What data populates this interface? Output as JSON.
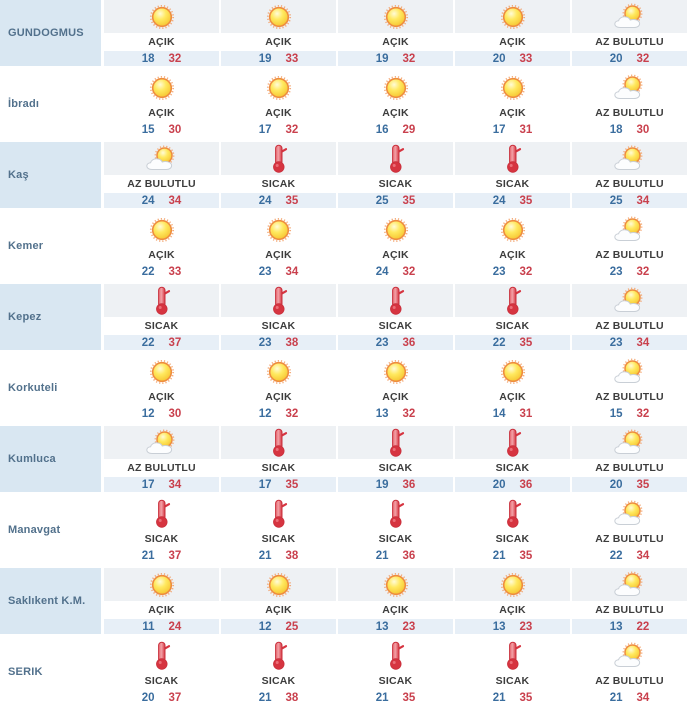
{
  "table": {
    "rows": [
      {
        "city": "GUNDOGMUS",
        "days": [
          {
            "icon": "sun",
            "condition": "AÇIK",
            "min": "18",
            "max": "32"
          },
          {
            "icon": "sun",
            "condition": "AÇIK",
            "min": "19",
            "max": "33"
          },
          {
            "icon": "sun",
            "condition": "AÇIK",
            "min": "19",
            "max": "32"
          },
          {
            "icon": "sun",
            "condition": "AÇIK",
            "min": "20",
            "max": "33"
          },
          {
            "icon": "sun-behind-cloud",
            "condition": "AZ BULUTLU",
            "min": "20",
            "max": "32"
          }
        ]
      },
      {
        "city": "İbradı",
        "days": [
          {
            "icon": "sun",
            "condition": "AÇIK",
            "min": "15",
            "max": "30"
          },
          {
            "icon": "sun",
            "condition": "AÇIK",
            "min": "17",
            "max": "32"
          },
          {
            "icon": "sun",
            "condition": "AÇIK",
            "min": "16",
            "max": "29"
          },
          {
            "icon": "sun",
            "condition": "AÇIK",
            "min": "17",
            "max": "31"
          },
          {
            "icon": "sun-behind-cloud",
            "condition": "AZ BULUTLU",
            "min": "18",
            "max": "30"
          }
        ]
      },
      {
        "city": "Kaş",
        "days": [
          {
            "icon": "sun-behind-cloud",
            "condition": "AZ BULUTLU",
            "min": "24",
            "max": "34"
          },
          {
            "icon": "thermometer",
            "condition": "SICAK",
            "min": "24",
            "max": "35"
          },
          {
            "icon": "thermometer",
            "condition": "SICAK",
            "min": "25",
            "max": "35"
          },
          {
            "icon": "thermometer",
            "condition": "SICAK",
            "min": "24",
            "max": "35"
          },
          {
            "icon": "sun-behind-cloud",
            "condition": "AZ BULUTLU",
            "min": "25",
            "max": "34"
          }
        ]
      },
      {
        "city": "Kemer",
        "days": [
          {
            "icon": "sun",
            "condition": "AÇIK",
            "min": "22",
            "max": "33"
          },
          {
            "icon": "sun",
            "condition": "AÇIK",
            "min": "23",
            "max": "34"
          },
          {
            "icon": "sun",
            "condition": "AÇIK",
            "min": "24",
            "max": "32"
          },
          {
            "icon": "sun",
            "condition": "AÇIK",
            "min": "23",
            "max": "32"
          },
          {
            "icon": "sun-behind-cloud",
            "condition": "AZ BULUTLU",
            "min": "23",
            "max": "32"
          }
        ]
      },
      {
        "city": "Kepez",
        "days": [
          {
            "icon": "thermometer",
            "condition": "SICAK",
            "min": "22",
            "max": "37"
          },
          {
            "icon": "thermometer",
            "condition": "SICAK",
            "min": "23",
            "max": "38"
          },
          {
            "icon": "thermometer",
            "condition": "SICAK",
            "min": "23",
            "max": "36"
          },
          {
            "icon": "thermometer",
            "condition": "SICAK",
            "min": "22",
            "max": "35"
          },
          {
            "icon": "sun-behind-cloud",
            "condition": "AZ BULUTLU",
            "min": "23",
            "max": "34"
          }
        ]
      },
      {
        "city": "Korkuteli",
        "days": [
          {
            "icon": "sun",
            "condition": "AÇIK",
            "min": "12",
            "max": "30"
          },
          {
            "icon": "sun",
            "condition": "AÇIK",
            "min": "12",
            "max": "32"
          },
          {
            "icon": "sun",
            "condition": "AÇIK",
            "min": "13",
            "max": "32"
          },
          {
            "icon": "sun",
            "condition": "AÇIK",
            "min": "14",
            "max": "31"
          },
          {
            "icon": "sun-behind-cloud",
            "condition": "AZ BULUTLU",
            "min": "15",
            "max": "32"
          }
        ]
      },
      {
        "city": "Kumluca",
        "days": [
          {
            "icon": "sun-behind-cloud",
            "condition": "AZ BULUTLU",
            "min": "17",
            "max": "34"
          },
          {
            "icon": "thermometer",
            "condition": "SICAK",
            "min": "17",
            "max": "35"
          },
          {
            "icon": "thermometer",
            "condition": "SICAK",
            "min": "19",
            "max": "36"
          },
          {
            "icon": "thermometer",
            "condition": "SICAK",
            "min": "20",
            "max": "36"
          },
          {
            "icon": "sun-behind-cloud",
            "condition": "AZ BULUTLU",
            "min": "20",
            "max": "35"
          }
        ]
      },
      {
        "city": "Manavgat",
        "days": [
          {
            "icon": "thermometer",
            "condition": "SICAK",
            "min": "21",
            "max": "37"
          },
          {
            "icon": "thermometer",
            "condition": "SICAK",
            "min": "21",
            "max": "38"
          },
          {
            "icon": "thermometer",
            "condition": "SICAK",
            "min": "21",
            "max": "36"
          },
          {
            "icon": "thermometer",
            "condition": "SICAK",
            "min": "21",
            "max": "35"
          },
          {
            "icon": "sun-behind-cloud",
            "condition": "AZ BULUTLU",
            "min": "22",
            "max": "34"
          }
        ]
      },
      {
        "city": "Saklıkent K.M.",
        "days": [
          {
            "icon": "sun",
            "condition": "AÇIK",
            "min": "11",
            "max": "24"
          },
          {
            "icon": "sun",
            "condition": "AÇIK",
            "min": "12",
            "max": "25"
          },
          {
            "icon": "sun",
            "condition": "AÇIK",
            "min": "13",
            "max": "23"
          },
          {
            "icon": "sun",
            "condition": "AÇIK",
            "min": "13",
            "max": "23"
          },
          {
            "icon": "sun-behind-cloud",
            "condition": "AZ BULUTLU",
            "min": "13",
            "max": "22"
          }
        ]
      },
      {
        "city": "SERIK",
        "days": [
          {
            "icon": "thermometer",
            "condition": "SICAK",
            "min": "20",
            "max": "37"
          },
          {
            "icon": "thermometer",
            "condition": "SICAK",
            "min": "21",
            "max": "38"
          },
          {
            "icon": "thermometer",
            "condition": "SICAK",
            "min": "21",
            "max": "35"
          },
          {
            "icon": "thermometer",
            "condition": "SICAK",
            "min": "21",
            "max": "35"
          },
          {
            "icon": "sun-behind-cloud",
            "condition": "AZ BULUTLU",
            "min": "21",
            "max": "34"
          }
        ]
      }
    ]
  },
  "icon_legend": {
    "sun": "sun-icon (clear)",
    "thermometer": "thermometer-icon (hot)",
    "sun-behind-cloud": "sun-behind-cloud-icon (partly cloudy)"
  },
  "colors": {
    "min_temp": "#3a6d9e",
    "max_temp": "#c9404d",
    "city_text": "#52718c",
    "condition_text": "#3d3d3d",
    "row_shade_name": "#d9e7f2",
    "row_shade_icon_band": "#eef1f4",
    "row_shade_temp_band": "#e7eff7",
    "sun_fill": "#ffd84d",
    "sun_rim": "#ee8c3f",
    "thermometer_red": "#d63440",
    "cloud_outline": "#c9cfd6"
  }
}
